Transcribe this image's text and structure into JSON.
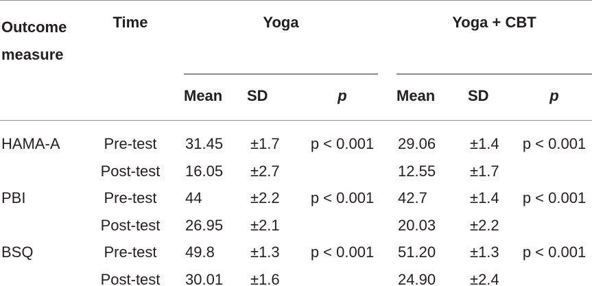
{
  "table": {
    "header": {
      "measure": "Outcome measure",
      "time": "Time",
      "group1": "Yoga",
      "group2": "Yoga + CBT"
    },
    "subheader": [
      "Mean",
      "SD",
      "p",
      "Mean",
      "SD",
      "p"
    ],
    "rows": [
      [
        "HAMA-A",
        "Pre-test",
        "31.45",
        "±1.7",
        "p < 0.001",
        "29.06",
        "±1.4",
        "p < 0.001"
      ],
      [
        null,
        "Post-test",
        "16.05",
        "±2.7",
        null,
        "12.55",
        "±1.7",
        null
      ],
      [
        "PBI",
        "Pre-test",
        "44",
        "±2.2",
        "p < 0.001",
        "42.7",
        "±1.4",
        "p < 0.001"
      ],
      [
        null,
        "Post-test",
        "26.95",
        "±2.1",
        null,
        "20.03",
        "±2.2",
        null
      ],
      [
        "BSQ",
        "Pre-test",
        "49.8",
        "±1.3",
        "p < 0.001",
        "51.20",
        "±1.3",
        "p < 0.001"
      ],
      [
        null,
        "Post-test",
        "30.01",
        "±1.6",
        null,
        "24.90",
        "±2.4",
        null
      ]
    ]
  }
}
